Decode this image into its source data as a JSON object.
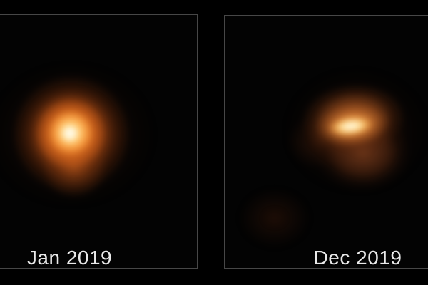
{
  "image": {
    "description": "Two-panel astronomical image comparing a star's appearance: a bright round star with a white core and orange halo on the left, and a dimmed lopsided star with an elongated bright crescent and faint lower half on the right"
  },
  "panels": [
    {
      "label": "Jan 2019"
    },
    {
      "label": "Dec 2019"
    }
  ],
  "colors": {
    "background": "#000000",
    "panel_bg": "#030303",
    "panel_border": "#474747",
    "label_text": "#e9e9e9",
    "star_core_white": "#fffef8",
    "star_core_cream": "#fff8e2",
    "star_glow_yellow": "#ffd882",
    "star_glow_orange": "#f29830",
    "star_glow_dim_orange": "#c86e30",
    "star_halo_brown": "#6e2e0c"
  }
}
